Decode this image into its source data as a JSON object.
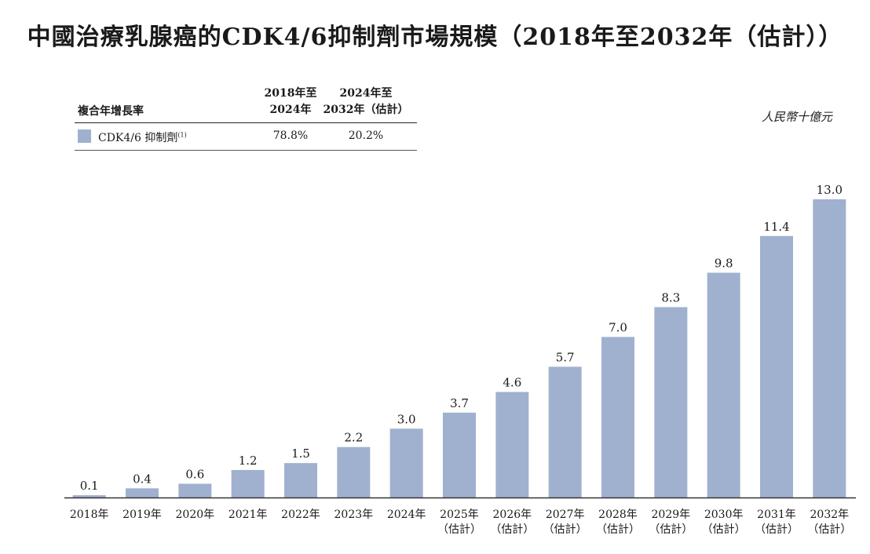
{
  "title": "中國治療乳腺癌的CDK4/6抑制劑市場規模（2018年至2032年（估計））",
  "unit": "人民幣十億元",
  "colors": {
    "bar": "#9fb1cf",
    "axis": "#333333",
    "text": "#1a1a1a"
  },
  "cagr_table": {
    "header_label": "複合年增長率",
    "columns": [
      {
        "line1": "2018年至",
        "line2": "2024年"
      },
      {
        "line1": "2024年至",
        "line2": "2032年（估計）"
      }
    ],
    "rows": [
      {
        "series": "CDK4/6 抑制劑",
        "footnote": "(1)",
        "values": [
          "78.8%",
          "20.2%"
        ]
      }
    ]
  },
  "chart_data": {
    "type": "bar",
    "title": "中國治療乳腺癌的CDK4/6抑制劑市場規模（2018年至2032年（估計））",
    "xlabel": "",
    "ylabel": "人民幣十億元",
    "ylim": [
      0,
      13.0
    ],
    "categories": [
      [
        "2018年"
      ],
      [
        "2019年"
      ],
      [
        "2020年"
      ],
      [
        "2021年"
      ],
      [
        "2022年"
      ],
      [
        "2023年"
      ],
      [
        "2024年"
      ],
      [
        "2025年",
        "（估計）"
      ],
      [
        "2026年",
        "（估計）"
      ],
      [
        "2027年",
        "（估計）"
      ],
      [
        "2028年",
        "（估計）"
      ],
      [
        "2029年",
        "（估計）"
      ],
      [
        "2030年",
        "（估計）"
      ],
      [
        "2031年",
        "（估計）"
      ],
      [
        "2032年",
        "（估計）"
      ]
    ],
    "series": [
      {
        "name": "CDK4/6 抑制劑",
        "values": [
          0.1,
          0.4,
          0.6,
          1.2,
          1.5,
          2.2,
          3.0,
          3.7,
          4.6,
          5.7,
          7.0,
          8.3,
          9.8,
          11.4,
          13.0
        ],
        "labels": [
          "0.1",
          "0.4",
          "0.6",
          "1.2",
          "1.5",
          "2.2",
          "3.0",
          "3.7",
          "4.6",
          "5.7",
          "7.0",
          "8.3",
          "9.8",
          "11.4",
          "13.0"
        ]
      }
    ],
    "grid": false,
    "legend": "top-left"
  }
}
